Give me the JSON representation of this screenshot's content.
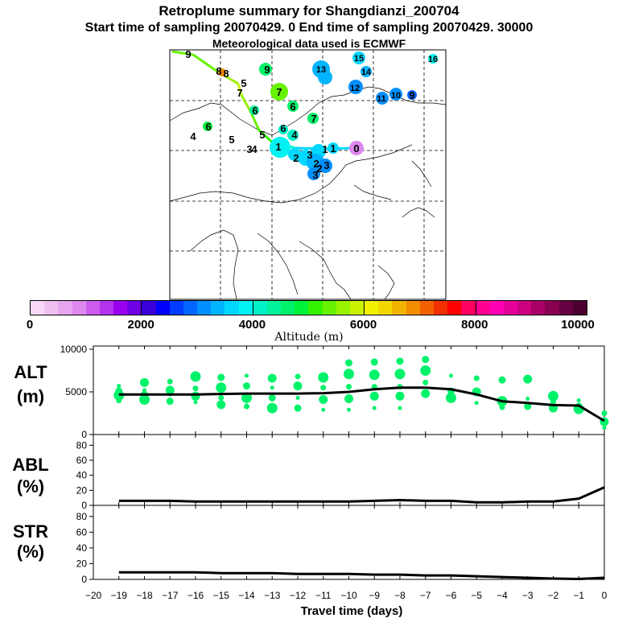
{
  "header": {
    "title": "Retroplume summary for Shangdianzi_200704",
    "subtitle": "Start time of sampling 20070429.     0     End time of sampling 20070429. 30000",
    "met": "Meteorological data used is ECMWF"
  },
  "colorbar": {
    "ticks": [
      "0",
      "2000",
      "4000",
      "6000",
      "8000",
      "10000"
    ],
    "label": "Altitude  (m)",
    "colors": [
      "#f7d8f7",
      "#efc0ef",
      "#e6a6ef",
      "#dd88ef",
      "#cc5cef",
      "#b433ef",
      "#9a00ef",
      "#7000e6",
      "#3a00d8",
      "#0000ff",
      "#003cff",
      "#0066ff",
      "#0090ff",
      "#00b4ff",
      "#00d8ff",
      "#00f2f2",
      "#00f2c8",
      "#00f29a",
      "#00f26a",
      "#00f23a",
      "#33f200",
      "#66f200",
      "#99f200",
      "#c8f200",
      "#f2f200",
      "#f2d800",
      "#f2b400",
      "#f28c00",
      "#f26000",
      "#f23000",
      "#ff0000",
      "#ff0060",
      "#ff0090",
      "#ff00b4",
      "#e6009a",
      "#cc0080",
      "#a80066",
      "#880050",
      "#660040",
      "#4a0030"
    ]
  },
  "map": {
    "labels": [
      {
        "t": "9",
        "c": "#66f200"
      },
      {
        "t": "8",
        "c": "#f28c00"
      },
      {
        "t": "8",
        "c": "#66f200"
      },
      {
        "t": "5",
        "c": "#66f200"
      },
      {
        "t": "7",
        "c": "#66f200"
      },
      {
        "t": "9",
        "c": "#00f26a"
      },
      {
        "t": "13",
        "c": "#00b4ff"
      },
      {
        "t": "15",
        "c": "#00d8ff"
      },
      {
        "t": "16",
        "c": "#00f2f2"
      },
      {
        "t": "14",
        "c": "#00b4ff"
      },
      {
        "t": "12",
        "c": "#0090ff"
      },
      {
        "t": "7",
        "c": "#66f200"
      },
      {
        "t": "11",
        "c": "#0090ff"
      },
      {
        "t": "10",
        "c": "#0090ff"
      },
      {
        "t": "9",
        "c": "#0066ff"
      },
      {
        "t": "6",
        "c": "#00f26a"
      },
      {
        "t": "6",
        "c": "#00f29a"
      },
      {
        "t": "7",
        "c": "#00f26a"
      },
      {
        "t": "6",
        "c": "#00f23a"
      },
      {
        "t": "4",
        "c": "#66f200"
      },
      {
        "t": "5",
        "c": "#66f200"
      },
      {
        "t": "5",
        "c": "#66f200"
      },
      {
        "t": "6",
        "c": "#00f2c8"
      },
      {
        "t": "4",
        "c": "#00f2c8"
      },
      {
        "t": "3",
        "c": "#00f23a"
      },
      {
        "t": "4",
        "c": "#00f23a"
      },
      {
        "t": "1",
        "c": "#00d8ff"
      },
      {
        "t": "0",
        "c": "#dd88ef"
      },
      {
        "t": "1",
        "c": "#00d8ff"
      },
      {
        "t": "2",
        "c": "#00f2c8"
      },
      {
        "t": "3",
        "c": "#00d8ff"
      },
      {
        "t": "1",
        "c": "#00d8ff"
      },
      {
        "t": "3",
        "c": "#00b4ff"
      },
      {
        "t": "2",
        "c": "#00b4ff"
      },
      {
        "t": "3",
        "c": "#0090ff"
      },
      {
        "t": "2",
        "c": "#00b4ff"
      }
    ]
  },
  "chart_data": [
    {
      "type": "line",
      "name": "ALT",
      "ylabel": "ALT (m)",
      "ylabel_lines": [
        "ALT",
        "(m)"
      ],
      "ylim": [
        0,
        10000
      ],
      "yticks": [
        0,
        5000,
        10000
      ],
      "x": [
        -19,
        -18,
        -17,
        -16,
        -15,
        -14,
        -13,
        -12,
        -11,
        -10,
        -9,
        -8,
        -7,
        -6,
        -5,
        -4,
        -3,
        -2,
        -1,
        0
      ],
      "y": [
        4700,
        4700,
        4700,
        4700,
        4750,
        4800,
        4800,
        4800,
        4850,
        5000,
        5300,
        5500,
        5500,
        5300,
        4700,
        3900,
        3700,
        3450,
        3400,
        1600
      ],
      "scatter": [
        [
          -19,
          5700
        ],
        [
          -19,
          5100
        ],
        [
          -19,
          4600
        ],
        [
          -19,
          4000
        ],
        [
          -18,
          6100
        ],
        [
          -18,
          5200
        ],
        [
          -18,
          4700
        ],
        [
          -18,
          4100
        ],
        [
          -17,
          6200
        ],
        [
          -17,
          5200
        ],
        [
          -17,
          4700
        ],
        [
          -17,
          3900
        ],
        [
          -16,
          6800
        ],
        [
          -16,
          5400
        ],
        [
          -16,
          4500
        ],
        [
          -16,
          3800
        ],
        [
          -15,
          6700
        ],
        [
          -15,
          5500
        ],
        [
          -15,
          4300
        ],
        [
          -15,
          3500
        ],
        [
          -14,
          6900
        ],
        [
          -14,
          5700
        ],
        [
          -14,
          4300
        ],
        [
          -14,
          3300
        ],
        [
          -13,
          6600
        ],
        [
          -13,
          5500
        ],
        [
          -13,
          4300
        ],
        [
          -13,
          3100
        ],
        [
          -12,
          6800
        ],
        [
          -12,
          5700
        ],
        [
          -12,
          4300
        ],
        [
          -12,
          3100
        ],
        [
          -11,
          6700
        ],
        [
          -11,
          5500
        ],
        [
          -11,
          4100
        ],
        [
          -11,
          2900
        ],
        [
          -10,
          8400
        ],
        [
          -10,
          7100
        ],
        [
          -10,
          5600
        ],
        [
          -10,
          4200
        ],
        [
          -10,
          2900
        ],
        [
          -9,
          8500
        ],
        [
          -9,
          7000
        ],
        [
          -9,
          5600
        ],
        [
          -9,
          4500
        ],
        [
          -9,
          3100
        ],
        [
          -8,
          8600
        ],
        [
          -8,
          7100
        ],
        [
          -8,
          5600
        ],
        [
          -8,
          4500
        ],
        [
          -8,
          3100
        ],
        [
          -7,
          8800
        ],
        [
          -7,
          7500
        ],
        [
          -7,
          6100
        ],
        [
          -7,
          4800
        ],
        [
          -6,
          6900
        ],
        [
          -6,
          5100
        ],
        [
          -6,
          4300
        ],
        [
          -5,
          6600
        ],
        [
          -5,
          5000
        ],
        [
          -5,
          3700
        ],
        [
          -4,
          6400
        ],
        [
          -4,
          3900
        ],
        [
          -4,
          3200
        ],
        [
          -3,
          6500
        ],
        [
          -3,
          4200
        ],
        [
          -3,
          3300
        ],
        [
          -2,
          4500
        ],
        [
          -2,
          3800
        ],
        [
          -2,
          3100
        ],
        [
          -1,
          4000
        ],
        [
          -1,
          3300
        ],
        [
          -1,
          3000
        ],
        [
          0,
          2500
        ],
        [
          0,
          1500
        ],
        [
          0,
          800
        ]
      ]
    },
    {
      "type": "line",
      "name": "ABL",
      "ylabel": "ABL (%)",
      "ylabel_lines": [
        "ABL",
        "(%)"
      ],
      "ylim": [
        0,
        90
      ],
      "yticks": [
        0,
        20,
        40,
        60,
        80
      ],
      "x": [
        -19,
        -18,
        -17,
        -16,
        -15,
        -14,
        -13,
        -12,
        -11,
        -10,
        -9,
        -8,
        -7,
        -6,
        -5,
        -4,
        -3,
        -2,
        -1,
        0
      ],
      "y": [
        6,
        6,
        6,
        5,
        5,
        5,
        5,
        5,
        5,
        5,
        6,
        7,
        6,
        6,
        4,
        4,
        5,
        5,
        9,
        24
      ]
    },
    {
      "type": "line",
      "name": "STR",
      "ylabel": "STR (%)",
      "ylabel_lines": [
        "STR",
        "(%)"
      ],
      "ylim": [
        0,
        90
      ],
      "yticks": [
        0,
        20,
        40,
        60,
        80
      ],
      "x": [
        -19,
        -18,
        -17,
        -16,
        -15,
        -14,
        -13,
        -12,
        -11,
        -10,
        -9,
        -8,
        -7,
        -6,
        -5,
        -4,
        -3,
        -2,
        -1,
        0
      ],
      "y": [
        9,
        9,
        9,
        9,
        8,
        8,
        8,
        7,
        7,
        7,
        6,
        6,
        5,
        5,
        4,
        3,
        2,
        1,
        0.5,
        2
      ]
    }
  ],
  "xaxis": {
    "ticks": [
      "−20",
      "−19",
      "−18",
      "−17",
      "−16",
      "−15",
      "−14",
      "−13",
      "−12",
      "−11",
      "−10",
      "−9",
      "−8",
      "−7",
      "−6",
      "−5",
      "−4",
      "−3",
      "−2",
      "−1",
      "0"
    ],
    "label": "Travel time (days)"
  }
}
